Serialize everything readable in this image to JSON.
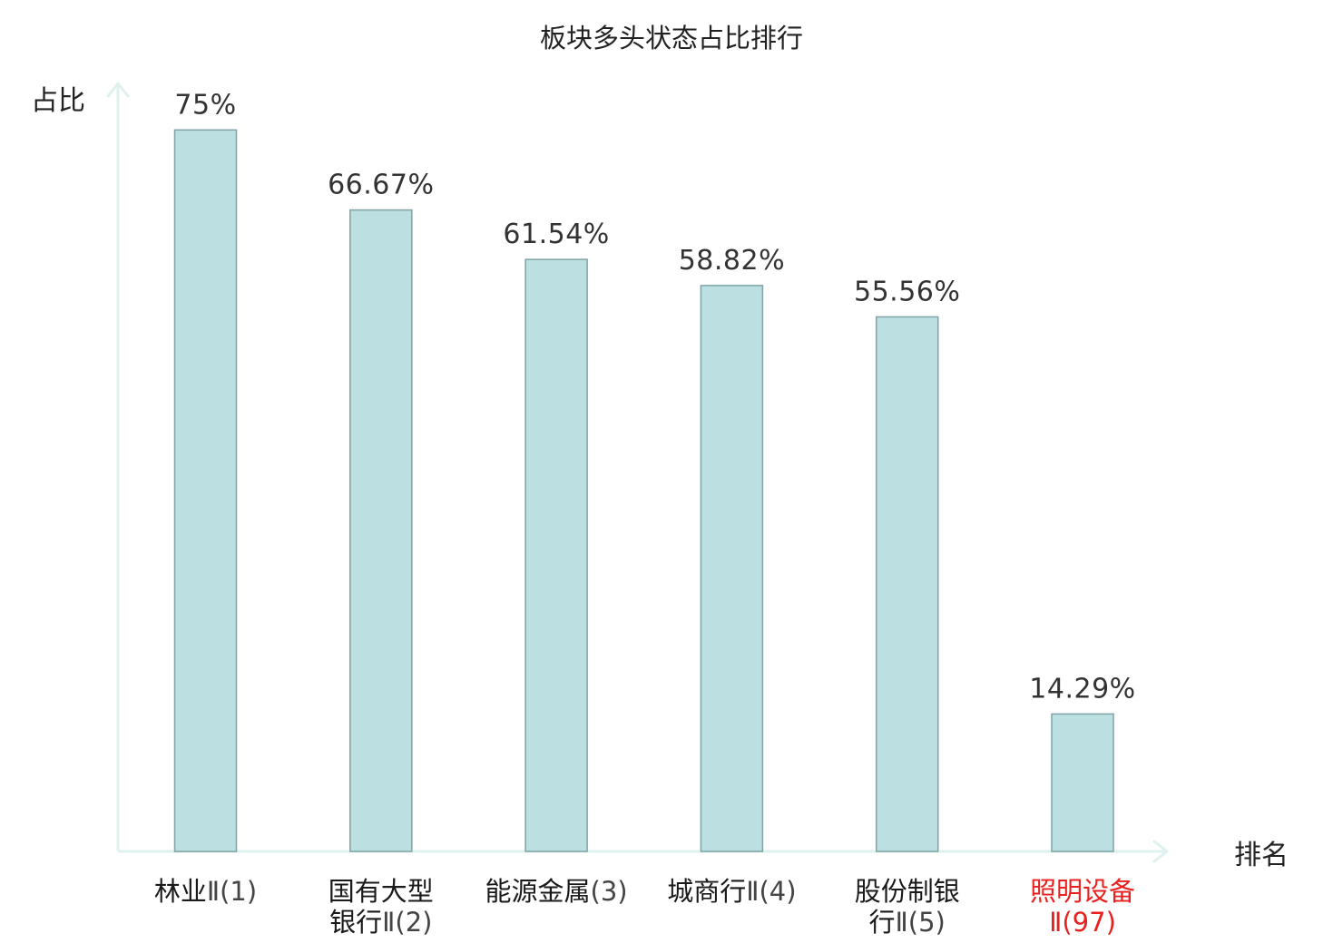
{
  "chart_data": {
    "type": "bar",
    "title": "板块多头状态占比排行",
    "ylabel": "占比",
    "xlabel": "排名",
    "ylim": [
      0,
      90
    ],
    "grid": false,
    "legend": "none",
    "bar_color": "#bce0e2",
    "bar_edge_color": "#7fa3a6",
    "axis_color": "#dff1ee",
    "highlight_color": "#e8211f",
    "categories": [
      {
        "lines": [
          {
            "text": "林业",
            "num": "Ⅱ(1)"
          }
        ],
        "highlight": false
      },
      {
        "lines": [
          {
            "text": "国有大型",
            "num": ""
          },
          {
            "text": "银行",
            "num": "Ⅱ(2)"
          }
        ],
        "highlight": false
      },
      {
        "lines": [
          {
            "text": "能源金属",
            "num": "(3)"
          }
        ],
        "highlight": false
      },
      {
        "lines": [
          {
            "text": "城商行",
            "num": "Ⅱ(4)"
          }
        ],
        "highlight": false
      },
      {
        "lines": [
          {
            "text": "股份制银",
            "num": ""
          },
          {
            "text": "行",
            "num": "Ⅱ(5)"
          }
        ],
        "highlight": false
      },
      {
        "lines": [
          {
            "text": "照明设备",
            "num": ""
          },
          {
            "text": "",
            "num": "Ⅱ(97)"
          }
        ],
        "highlight": true
      }
    ],
    "values": [
      75,
      66.67,
      61.54,
      58.82,
      55.56,
      14.29
    ],
    "value_labels": [
      "75%",
      "66.67%",
      "61.54%",
      "58.82%",
      "55.56%",
      "14.29%"
    ]
  }
}
